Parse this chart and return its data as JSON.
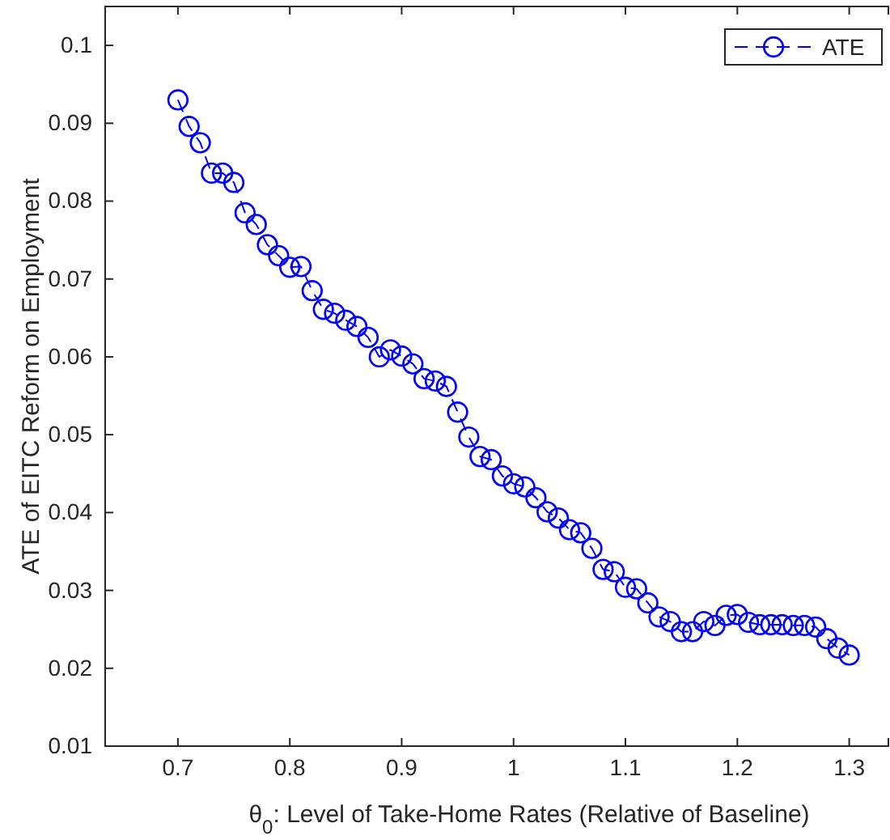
{
  "chart_data": {
    "type": "line",
    "xlabel": "θ$_{0}$: Level of Take-Home Rates (Relative of Baseline)",
    "ylabel": "ATE of EITC Reform on Employment",
    "x": [
      0.7,
      0.71,
      0.72,
      0.73,
      0.74,
      0.75,
      0.76,
      0.77,
      0.78,
      0.79,
      0.8,
      0.81,
      0.82,
      0.83,
      0.84,
      0.85,
      0.86,
      0.87,
      0.88,
      0.89,
      0.9,
      0.91,
      0.92,
      0.93,
      0.94,
      0.95,
      0.96,
      0.97,
      0.98,
      0.99,
      1.0,
      1.01,
      1.02,
      1.03,
      1.04,
      1.05,
      1.06,
      1.07,
      1.08,
      1.09,
      1.1,
      1.11,
      1.12,
      1.13,
      1.14,
      1.15,
      1.16,
      1.17,
      1.18,
      1.19,
      1.2,
      1.21,
      1.22,
      1.23,
      1.24,
      1.25,
      1.26,
      1.27,
      1.28,
      1.29,
      1.3
    ],
    "series": [
      {
        "name": "ATE",
        "color": "#0000ff",
        "values": [
          0.093,
          0.0896,
          0.0875,
          0.0836,
          0.0836,
          0.0824,
          0.0785,
          0.077,
          0.0744,
          0.073,
          0.0715,
          0.0716,
          0.0685,
          0.0661,
          0.0656,
          0.0647,
          0.0639,
          0.0625,
          0.06,
          0.0609,
          0.0601,
          0.0591,
          0.0572,
          0.0569,
          0.0562,
          0.0529,
          0.0497,
          0.0472,
          0.0468,
          0.0447,
          0.0437,
          0.0433,
          0.0419,
          0.0401,
          0.0393,
          0.0378,
          0.0374,
          0.0354,
          0.0327,
          0.0324,
          0.0304,
          0.0302,
          0.0284,
          0.0266,
          0.026,
          0.0247,
          0.0247,
          0.026,
          0.0255,
          0.0268,
          0.0269,
          0.0259,
          0.0256,
          0.0256,
          0.0256,
          0.0255,
          0.0255,
          0.0253,
          0.0238,
          0.0226,
          0.0217
        ]
      }
    ],
    "xlim": [
      0.635,
      1.335
    ],
    "xticks": [
      0.7,
      0.8,
      0.9,
      1,
      1.1,
      1.2,
      1.3
    ],
    "ylim": [
      0.01,
      0.105
    ],
    "yticks": [
      0.01,
      0.02,
      0.03,
      0.04,
      0.05,
      0.06,
      0.07,
      0.08,
      0.09,
      0.1
    ],
    "grid": false,
    "legend": "top right",
    "marker": "circle",
    "line_style": "dashed"
  }
}
